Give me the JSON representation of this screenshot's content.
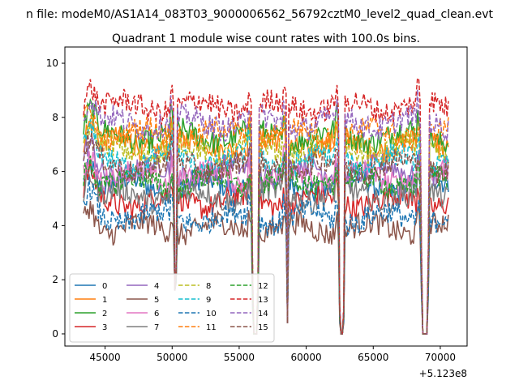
{
  "chart_data": {
    "type": "line",
    "suptitle": "n file: modeM0/AS1A14_083T03_9000006562_56792cztM0_level2_quad_clean.evt",
    "title": "Quadrant 1 module wise count rates with 100.0s bins.",
    "xlabel": "",
    "ylabel": "",
    "x_offset_label": "+5.123e8",
    "xlim": [
      42000,
      72000
    ],
    "ylim": [
      -0.45,
      10.6
    ],
    "x_ticks": [
      45000,
      50000,
      55000,
      60000,
      65000,
      70000
    ],
    "x_tick_labels": [
      "45000",
      "50000",
      "55000",
      "60000",
      "65000",
      "70000"
    ],
    "y_ticks": [
      0,
      2,
      4,
      6,
      8,
      10
    ],
    "y_tick_labels": [
      "0",
      "2",
      "4",
      "6",
      "8",
      "10"
    ],
    "x_range": [
      43400,
      70600
    ],
    "gaps": [
      {
        "start": 50100,
        "end": 50350,
        "min": 1.6
      },
      {
        "start": 55900,
        "end": 56500,
        "min": 0.0
      },
      {
        "start": 58500,
        "end": 58700,
        "min": 0.4
      },
      {
        "start": 62400,
        "end": 62900,
        "min": 0.0
      },
      {
        "start": 68500,
        "end": 69200,
        "min": 0.0
      }
    ],
    "series": [
      {
        "name": "0",
        "color": "#1f77b4",
        "dash": "solid",
        "level": 5.5
      },
      {
        "name": "1",
        "color": "#ff7f0e",
        "dash": "solid",
        "level": 7.0
      },
      {
        "name": "2",
        "color": "#2ca02c",
        "dash": "solid",
        "level": 7.3
      },
      {
        "name": "3",
        "color": "#d62728",
        "dash": "solid",
        "level": 4.9
      },
      {
        "name": "4",
        "color": "#9467bd",
        "dash": "solid",
        "level": 6.0
      },
      {
        "name": "5",
        "color": "#8c564b",
        "dash": "solid",
        "level": 3.9
      },
      {
        "name": "6",
        "color": "#e377c2",
        "dash": "solid",
        "level": 5.8
      },
      {
        "name": "7",
        "color": "#7f7f7f",
        "dash": "solid",
        "level": 5.1
      },
      {
        "name": "8",
        "color": "#bcbd22",
        "dash": "dashed",
        "level": 6.8
      },
      {
        "name": "9",
        "color": "#17becf",
        "dash": "dashed",
        "level": 6.4
      },
      {
        "name": "10",
        "color": "#1f77b4",
        "dash": "dashed",
        "level": 4.3
      },
      {
        "name": "11",
        "color": "#ff7f0e",
        "dash": "dashed",
        "level": 7.4
      },
      {
        "name": "12",
        "color": "#2ca02c",
        "dash": "dashed",
        "level": 5.6
      },
      {
        "name": "13",
        "color": "#d62728",
        "dash": "dashed",
        "level": 8.4
      },
      {
        "name": "14",
        "color": "#9467bd",
        "dash": "dashed",
        "level": 7.8
      },
      {
        "name": "15",
        "color": "#8c564b",
        "dash": "dashed",
        "level": 6.2
      }
    ],
    "legend": {
      "placement": "lower-left",
      "ncol": 4
    }
  }
}
